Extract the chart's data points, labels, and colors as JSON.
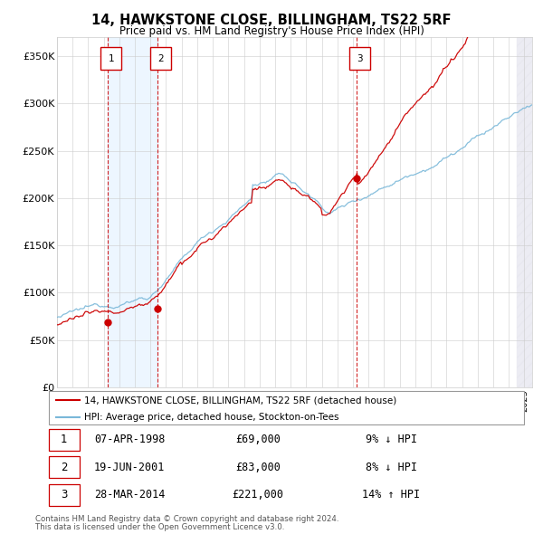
{
  "title": "14, HAWKSTONE CLOSE, BILLINGHAM, TS22 5RF",
  "subtitle": "Price paid vs. HM Land Registry's House Price Index (HPI)",
  "legend_line1": "14, HAWKSTONE CLOSE, BILLINGHAM, TS22 5RF (detached house)",
  "legend_line2": "HPI: Average price, detached house, Stockton-on-Tees",
  "transactions": [
    {
      "num": 1,
      "date": "07-APR-1998",
      "price": 69000,
      "pct": "9%",
      "dir": "↓",
      "year": 1998.27
    },
    {
      "num": 2,
      "date": "19-JUN-2001",
      "price": 83000,
      "pct": "8%",
      "dir": "↓",
      "year": 2001.46
    },
    {
      "num": 3,
      "date": "28-MAR-2014",
      "price": 221000,
      "pct": "14%",
      "dir": "↑",
      "year": 2014.23
    }
  ],
  "hpi_color": "#7ab8d9",
  "price_color": "#cc0000",
  "dashed_color": "#cc0000",
  "shade_color": "#ddeeff",
  "yticks": [
    0,
    50000,
    100000,
    150000,
    200000,
    250000,
    300000,
    350000
  ],
  "ytick_labels": [
    "£0",
    "£50K",
    "£100K",
    "£150K",
    "£200K",
    "£250K",
    "£300K",
    "£350K"
  ],
  "ylim": [
    0,
    370000
  ],
  "xlim_start": 1995.0,
  "xlim_end": 2025.5,
  "footer1": "Contains HM Land Registry data © Crown copyright and database right 2024.",
  "footer2": "This data is licensed under the Open Government Licence v3.0."
}
